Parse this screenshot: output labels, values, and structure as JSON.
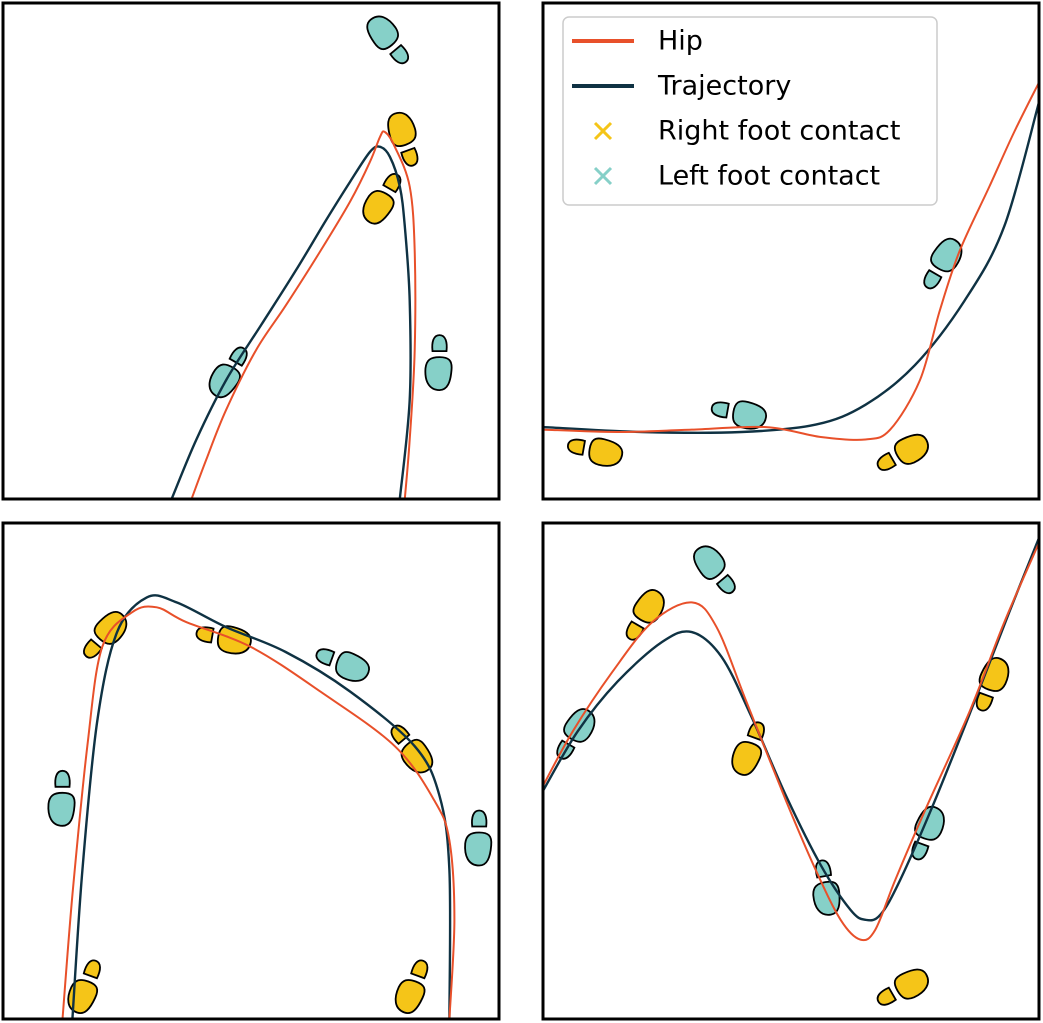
{
  "colors": {
    "hip": "#e8502a",
    "trajectory": "#0f3243",
    "right_foot": "#f5c518",
    "left_foot": "#86d0c8"
  },
  "legend": {
    "placement": "upper-left of top-right panel",
    "items": [
      {
        "label": "Hip",
        "kind": "line",
        "series": "hip"
      },
      {
        "label": "Trajectory",
        "kind": "line",
        "series": "trajectory"
      },
      {
        "label": "Right foot contact",
        "kind": "marker",
        "series": "right_foot"
      },
      {
        "label": "Left foot contact",
        "kind": "marker",
        "series": "left_foot"
      }
    ]
  },
  "chart_data": [
    {
      "type": "line",
      "panel": "top-left",
      "xlim": [
        0,
        100
      ],
      "ylim": [
        0,
        100
      ],
      "series": [
        {
          "name": "Hip",
          "key": "hip",
          "points": [
            [
              38,
              0
            ],
            [
              41,
              8
            ],
            [
              45,
              18
            ],
            [
              51,
              30
            ],
            [
              57,
              39
            ],
            [
              64,
              50
            ],
            [
              70,
              60
            ],
            [
              74,
              68
            ],
            [
              76,
              73
            ],
            [
              77,
              74
            ],
            [
              79,
              71
            ],
            [
              82,
              63
            ],
            [
              83,
              50
            ],
            [
              83,
              30
            ],
            [
              82,
              12
            ],
            [
              81,
              0
            ]
          ]
        },
        {
          "name": "Trajectory",
          "key": "trajectory",
          "points": [
            [
              34,
              0
            ],
            [
              39,
              12
            ],
            [
              45,
              24
            ],
            [
              52,
              35
            ],
            [
              59,
              46
            ],
            [
              65,
              56
            ],
            [
              70,
              64
            ],
            [
              74,
              70
            ],
            [
              76,
              71
            ],
            [
              78,
              69
            ],
            [
              80,
              63
            ],
            [
              81,
              55
            ],
            [
              82,
              40
            ],
            [
              82,
              20
            ],
            [
              80,
              0
            ]
          ]
        }
      ],
      "footprints": [
        {
          "foot": "left",
          "x": 78,
          "y": 92,
          "angle": -40
        },
        {
          "foot": "right",
          "x": 81,
          "y": 72,
          "angle": -20
        },
        {
          "foot": "right",
          "x": 77,
          "y": 61,
          "angle": 210
        },
        {
          "foot": "left",
          "x": 46,
          "y": 26,
          "angle": 210
        },
        {
          "foot": "left",
          "x": 88,
          "y": 28,
          "angle": 180
        }
      ]
    },
    {
      "type": "line",
      "panel": "top-right",
      "xlim": [
        0,
        100
      ],
      "ylim": [
        0,
        100
      ],
      "series": [
        {
          "name": "Hip",
          "key": "hip",
          "points": [
            [
              0,
              14
            ],
            [
              15,
              13.5
            ],
            [
              30,
              14
            ],
            [
              45,
              14.5
            ],
            [
              56,
              12.5
            ],
            [
              65,
              12
            ],
            [
              70,
              14
            ],
            [
              76,
              24
            ],
            [
              80,
              38
            ],
            [
              84,
              50
            ],
            [
              90,
              63
            ],
            [
              95,
              74
            ],
            [
              100,
              84
            ]
          ]
        },
        {
          "name": "Trajectory",
          "key": "trajectory",
          "points": [
            [
              0,
              14.5
            ],
            [
              20,
              13.5
            ],
            [
              40,
              13.5
            ],
            [
              55,
              15
            ],
            [
              65,
              19
            ],
            [
              75,
              27
            ],
            [
              85,
              40
            ],
            [
              93,
              55
            ],
            [
              100,
              80
            ]
          ]
        }
      ],
      "footprints": [
        {
          "foot": "right",
          "x": 10,
          "y": 10,
          "angle": 100
        },
        {
          "foot": "left",
          "x": 39,
          "y": 17.5,
          "angle": 100
        },
        {
          "foot": "right",
          "x": 72,
          "y": 9,
          "angle": 60
        },
        {
          "foot": "left",
          "x": 80,
          "y": 47,
          "angle": 30
        }
      ]
    },
    {
      "type": "line",
      "panel": "bottom-left",
      "xlim": [
        0,
        100
      ],
      "ylim": [
        0,
        100
      ],
      "series": [
        {
          "name": "Hip",
          "key": "hip",
          "points": [
            [
              12,
              0
            ],
            [
              14,
              25
            ],
            [
              17,
              55
            ],
            [
              20,
              75
            ],
            [
              26,
              82
            ],
            [
              31,
              83
            ],
            [
              37,
              80
            ],
            [
              50,
              75
            ],
            [
              64,
              66
            ],
            [
              79,
              55
            ],
            [
              87,
              44
            ],
            [
              90,
              36
            ],
            [
              91,
              20
            ],
            [
              90,
              0
            ]
          ]
        },
        {
          "name": "Trajectory",
          "key": "trajectory",
          "points": [
            [
              14,
              0
            ],
            [
              16,
              30
            ],
            [
              19,
              60
            ],
            [
              23,
              78
            ],
            [
              29,
              85
            ],
            [
              35,
              84
            ],
            [
              45,
              79
            ],
            [
              57,
              74
            ],
            [
              70,
              66
            ],
            [
              83,
              55
            ],
            [
              88,
              45
            ],
            [
              90,
              30
            ],
            [
              90,
              0
            ]
          ]
        }
      ],
      "footprints": [
        {
          "foot": "right",
          "x": 20,
          "y": 77,
          "angle": 40
        },
        {
          "foot": "right",
          "x": 44,
          "y": 77,
          "angle": 100
        },
        {
          "foot": "left",
          "x": 68,
          "y": 72,
          "angle": 110
        },
        {
          "foot": "right",
          "x": 82,
          "y": 55,
          "angle": 140
        },
        {
          "foot": "left",
          "x": 12,
          "y": 45,
          "angle": 180
        },
        {
          "foot": "left",
          "x": 96,
          "y": 37,
          "angle": 180
        },
        {
          "foot": "right",
          "x": 17,
          "y": 7,
          "angle": 200
        },
        {
          "foot": "right",
          "x": 83,
          "y": 7,
          "angle": 200
        }
      ]
    },
    {
      "type": "line",
      "panel": "bottom-right",
      "xlim": [
        0,
        100
      ],
      "ylim": [
        0,
        100
      ],
      "series": [
        {
          "name": "Hip",
          "key": "hip",
          "points": [
            [
              0,
              47
            ],
            [
              6,
              58
            ],
            [
              14,
              70
            ],
            [
              22,
              80
            ],
            [
              30,
              84
            ],
            [
              35,
              79
            ],
            [
              41,
              64
            ],
            [
              49,
              44
            ],
            [
              55,
              30
            ],
            [
              60,
              20
            ],
            [
              64,
              16
            ],
            [
              67,
              18
            ],
            [
              71,
              28
            ],
            [
              77,
              42
            ],
            [
              86,
              62
            ],
            [
              93,
              80
            ],
            [
              100,
              96
            ]
          ]
        },
        {
          "name": "Trajectory",
          "key": "trajectory",
          "points": [
            [
              0,
              46
            ],
            [
              7,
              58
            ],
            [
              15,
              68
            ],
            [
              24,
              76
            ],
            [
              30,
              78
            ],
            [
              36,
              73
            ],
            [
              42,
              61
            ],
            [
              49,
              45
            ],
            [
              56,
              31
            ],
            [
              62,
              22
            ],
            [
              65,
              20
            ],
            [
              68,
              21
            ],
            [
              72,
              28
            ],
            [
              79,
              44
            ],
            [
              87,
              64
            ],
            [
              94,
              82
            ],
            [
              100,
              97
            ]
          ]
        }
      ],
      "footprints": [
        {
          "foot": "left",
          "x": 35,
          "y": 90,
          "angle": -40
        },
        {
          "foot": "right",
          "x": 20,
          "y": 81,
          "angle": 30
        },
        {
          "foot": "left",
          "x": 6,
          "y": 57,
          "angle": 30
        },
        {
          "foot": "right",
          "x": 42,
          "y": 55,
          "angle": 200
        },
        {
          "foot": "left",
          "x": 57,
          "y": 27,
          "angle": 170
        },
        {
          "foot": "right",
          "x": 72,
          "y": 6,
          "angle": 60
        },
        {
          "foot": "left",
          "x": 77,
          "y": 37,
          "angle": 20
        },
        {
          "foot": "right",
          "x": 90,
          "y": 67,
          "angle": 20
        }
      ]
    }
  ]
}
